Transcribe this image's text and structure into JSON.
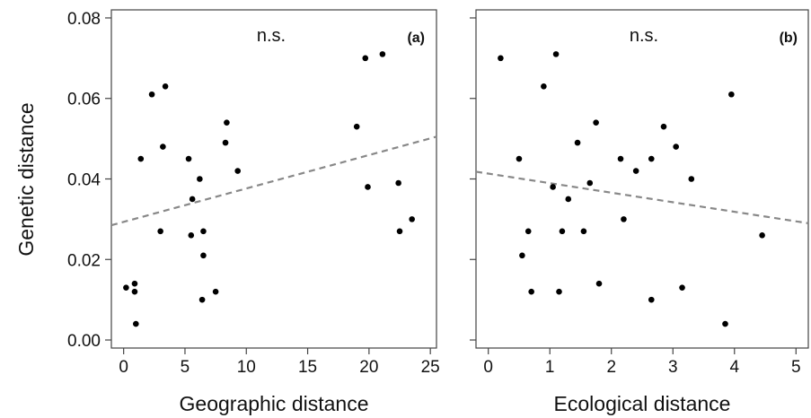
{
  "chart_data": [
    {
      "type": "scatter",
      "panel_label": "(a)",
      "annotation": "n.s.",
      "xlabel": "Geographic distance",
      "ylabel": "Genetic distance",
      "xlim": [
        -1,
        25.5
      ],
      "ylim": [
        -0.002,
        0.082
      ],
      "xticks": [
        0,
        5,
        10,
        15,
        20,
        25
      ],
      "yticks": [
        0.0,
        0.02,
        0.04,
        0.06,
        0.08
      ],
      "ytick_labels": [
        "0.00",
        "0.02",
        "0.04",
        "0.06",
        "0.08"
      ],
      "grid": false,
      "points": [
        {
          "x": 0.2,
          "y": 0.013
        },
        {
          "x": 0.9,
          "y": 0.012
        },
        {
          "x": 0.9,
          "y": 0.014
        },
        {
          "x": 1.0,
          "y": 0.004
        },
        {
          "x": 1.4,
          "y": 0.045
        },
        {
          "x": 2.3,
          "y": 0.061
        },
        {
          "x": 3.0,
          "y": 0.027
        },
        {
          "x": 3.2,
          "y": 0.048
        },
        {
          "x": 3.4,
          "y": 0.063
        },
        {
          "x": 5.3,
          "y": 0.045
        },
        {
          "x": 5.5,
          "y": 0.026
        },
        {
          "x": 5.6,
          "y": 0.035
        },
        {
          "x": 6.2,
          "y": 0.04
        },
        {
          "x": 6.4,
          "y": 0.01
        },
        {
          "x": 6.5,
          "y": 0.021
        },
        {
          "x": 6.5,
          "y": 0.027
        },
        {
          "x": 7.5,
          "y": 0.012
        },
        {
          "x": 8.3,
          "y": 0.049
        },
        {
          "x": 8.4,
          "y": 0.054
        },
        {
          "x": 9.3,
          "y": 0.042
        },
        {
          "x": 19.0,
          "y": 0.053
        },
        {
          "x": 19.7,
          "y": 0.07
        },
        {
          "x": 19.9,
          "y": 0.038
        },
        {
          "x": 21.1,
          "y": 0.071
        },
        {
          "x": 22.4,
          "y": 0.039
        },
        {
          "x": 22.5,
          "y": 0.027
        },
        {
          "x": 23.5,
          "y": 0.03
        }
      ],
      "trend": {
        "x": [
          -1,
          25.5
        ],
        "y": [
          0.0285,
          0.0505
        ]
      }
    },
    {
      "type": "scatter",
      "panel_label": "(b)",
      "annotation": "n.s.",
      "xlabel": "Ecological distance",
      "ylabel": "",
      "xlim": [
        -0.2,
        5.2
      ],
      "ylim": [
        -0.002,
        0.082
      ],
      "xticks": [
        0,
        1,
        2,
        3,
        4,
        5
      ],
      "yticks": [
        0.0,
        0.02,
        0.04,
        0.06,
        0.08
      ],
      "ytick_labels": [],
      "grid": false,
      "points": [
        {
          "x": 0.2,
          "y": 0.07
        },
        {
          "x": 0.5,
          "y": 0.045
        },
        {
          "x": 0.55,
          "y": 0.021
        },
        {
          "x": 0.65,
          "y": 0.027
        },
        {
          "x": 0.7,
          "y": 0.012
        },
        {
          "x": 0.9,
          "y": 0.063
        },
        {
          "x": 1.05,
          "y": 0.038
        },
        {
          "x": 1.1,
          "y": 0.071
        },
        {
          "x": 1.15,
          "y": 0.012
        },
        {
          "x": 1.2,
          "y": 0.027
        },
        {
          "x": 1.3,
          "y": 0.035
        },
        {
          "x": 1.45,
          "y": 0.049
        },
        {
          "x": 1.55,
          "y": 0.027
        },
        {
          "x": 1.65,
          "y": 0.039
        },
        {
          "x": 1.75,
          "y": 0.054
        },
        {
          "x": 1.8,
          "y": 0.014
        },
        {
          "x": 2.15,
          "y": 0.045
        },
        {
          "x": 2.2,
          "y": 0.03
        },
        {
          "x": 2.4,
          "y": 0.042
        },
        {
          "x": 2.65,
          "y": 0.01
        },
        {
          "x": 2.65,
          "y": 0.045
        },
        {
          "x": 2.85,
          "y": 0.053
        },
        {
          "x": 3.05,
          "y": 0.048
        },
        {
          "x": 3.15,
          "y": 0.013
        },
        {
          "x": 3.3,
          "y": 0.04
        },
        {
          "x": 3.85,
          "y": 0.004
        },
        {
          "x": 3.95,
          "y": 0.061
        },
        {
          "x": 4.45,
          "y": 0.026
        }
      ],
      "trend": {
        "x": [
          -0.2,
          5.2
        ],
        "y": [
          0.0418,
          0.029
        ]
      }
    }
  ]
}
